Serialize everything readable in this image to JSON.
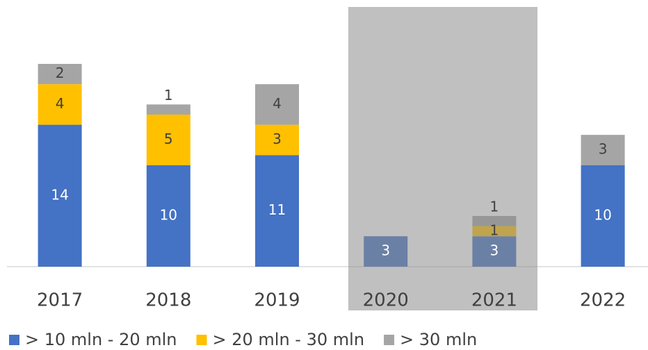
{
  "chart_data": {
    "type": "stacked_bar",
    "categories": [
      "2017",
      "2018",
      "2019",
      "2020",
      "2021",
      "2022"
    ],
    "series": [
      {
        "name": "> 10 mln - 20 mln",
        "color": "#4472c4",
        "values": [
          14,
          10,
          11,
          3,
          3,
          10
        ]
      },
      {
        "name": "> 20 mln - 30 mln",
        "color": "#ffc000",
        "values": [
          4,
          5,
          3,
          null,
          1,
          null
        ]
      },
      {
        "name": "> 30 mln",
        "color": "#a5a5a5",
        "values": [
          2,
          1,
          4,
          null,
          1,
          3
        ]
      }
    ],
    "ylim": [
      0,
      20
    ],
    "legend": "bottom"
  }
}
